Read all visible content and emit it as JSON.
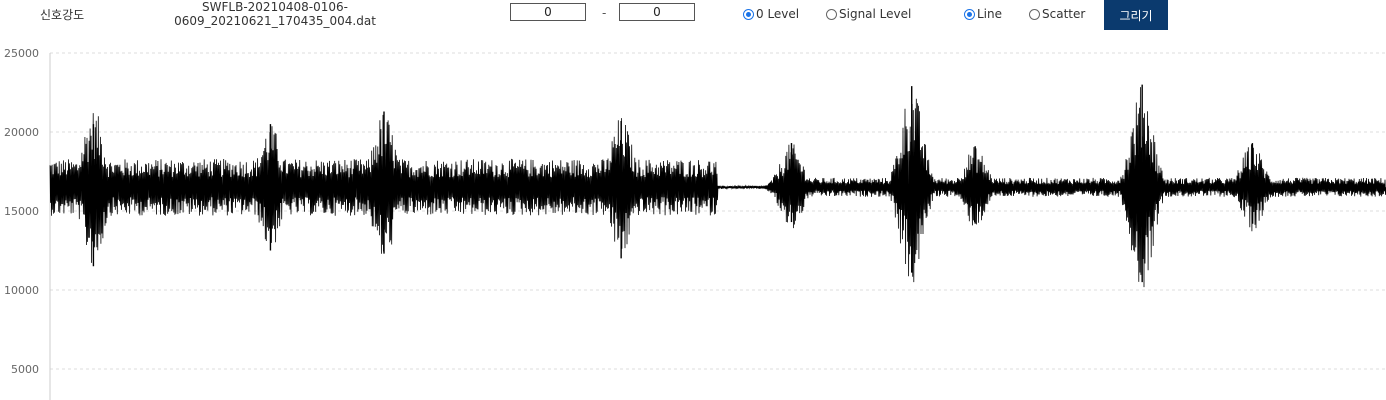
{
  "toolbar": {
    "signal_label": "신호강도",
    "file_name_line1": "SWFLB-20210408-0106-",
    "file_name_line2": "0609_20210621_170435_004.dat",
    "range_start": "0",
    "range_separator": "-",
    "range_end": "0",
    "level_options": [
      {
        "label": "0 Level",
        "checked": true
      },
      {
        "label": "Signal Level",
        "checked": false
      }
    ],
    "plot_options": [
      {
        "label": "Line",
        "checked": true
      },
      {
        "label": "Scatter",
        "checked": false
      }
    ],
    "draw_button_label": "그리기"
  },
  "colors": {
    "button_bg": "#0b3a6e",
    "radio_checked": "#1a73e8",
    "signal_line": "#000000",
    "grid": "#dddddd"
  },
  "chart_data": {
    "type": "line",
    "title": "",
    "xlabel": "",
    "ylabel": "",
    "y_ticks": [
      25000,
      20000,
      15000,
      10000,
      5000
    ],
    "ylim": [
      3000,
      25000
    ],
    "grid": true,
    "baseline": 16500,
    "series": [
      {
        "x": [
          0,
          10,
          23,
          26,
          33,
          40,
          50,
          60,
          62,
          70,
          80,
          92,
          110,
          115,
          130,
          140,
          150,
          155,
          164,
          170,
          178
        ],
        "y": [
          16500,
          13500,
          19500,
          14000,
          20500,
          12000,
          16500,
          16400,
          19000,
          14500,
          16600,
          20400,
          16000,
          19800,
          13500,
          16600,
          21300,
          12500,
          16700,
          15000,
          16500
        ]
      }
    ],
    "segments": [
      {
        "x_start": 0,
        "x_end": 100,
        "amplitude": 1800,
        "character": "continuous dense oscillation"
      },
      {
        "x_start": 100,
        "x_end": 110,
        "amplitude": 100,
        "character": "flat quiet"
      },
      {
        "x_start": 110,
        "x_end": 200,
        "amplitude": 600,
        "character": "low noise with bursts"
      }
    ],
    "bursts": [
      {
        "x": 6.5,
        "peak_high": 20500,
        "peak_low": 11500
      },
      {
        "x": 33,
        "peak_high": 20500,
        "peak_low": 12500
      },
      {
        "x": 50,
        "peak_high": 21300,
        "peak_low": 12300
      },
      {
        "x": 85.5,
        "peak_high": 20700,
        "peak_low": 12000
      },
      {
        "x": 111,
        "peak_high": 19300,
        "peak_low": 14300
      },
      {
        "x": 129,
        "peak_high": 22900,
        "peak_low": 11100
      },
      {
        "x": 138.5,
        "peak_high": 19100,
        "peak_low": 14200
      },
      {
        "x": 163.5,
        "peak_high": 23000,
        "peak_low": 10500
      },
      {
        "x": 180,
        "peak_high": 19300,
        "peak_low": 14200
      }
    ],
    "xlim": [
      0,
      200
    ]
  }
}
